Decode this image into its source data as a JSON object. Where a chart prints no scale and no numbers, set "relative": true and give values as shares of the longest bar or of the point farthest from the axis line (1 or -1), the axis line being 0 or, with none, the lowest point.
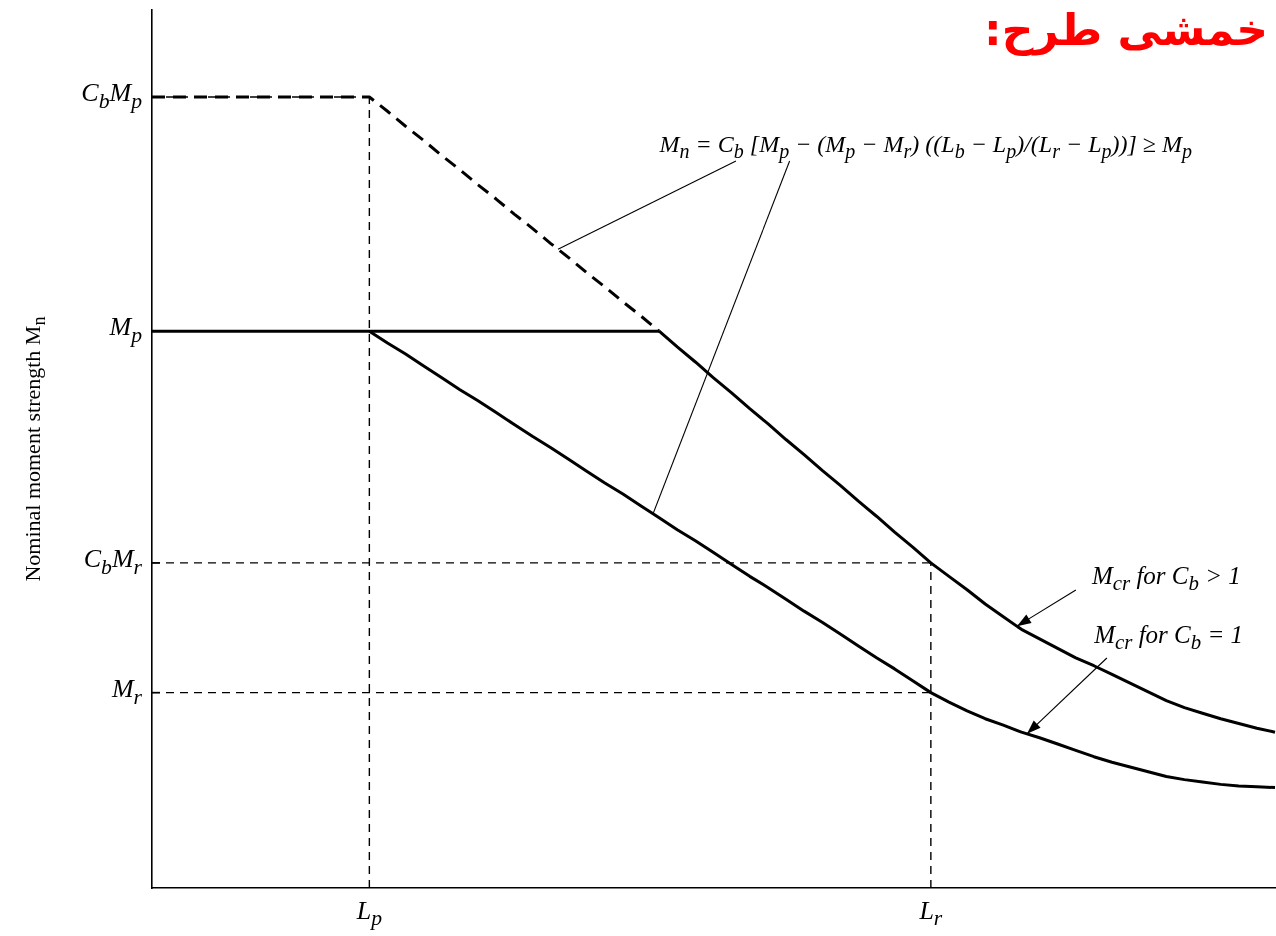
{
  "chart_data": {
    "type": "line",
    "title": "خمشی طرح:",
    "ylabel": "Nominal moment strength M$_{n}$",
    "relative": true,
    "categories": [
      null,
      null,
      null,
      null,
      null,
      null,
      null,
      null,
      null,
      null,
      null,
      null,
      "L$_{p}$",
      null,
      null,
      null,
      null,
      null,
      null,
      null,
      null,
      null,
      null,
      null,
      null,
      null,
      null,
      null,
      null,
      null,
      null,
      null,
      null,
      null,
      null,
      null,
      null,
      null,
      null,
      null,
      null,
      null,
      null,
      "L$_{r}$",
      null,
      null,
      null,
      null,
      null,
      null,
      null,
      null,
      null,
      null,
      null,
      null,
      null,
      null,
      null,
      null,
      null,
      null,
      null
    ],
    "series": [
      {
        "color": "#000000",
        "line_style": "dashed",
        "values": [
          1,
          1,
          1,
          1,
          1,
          1,
          1,
          1,
          1,
          1,
          1,
          1,
          1,
          0.982,
          0.963,
          0.945,
          0.926,
          0.908,
          0.889,
          0.871,
          0.852,
          0.834,
          0.815,
          0.797,
          0.778,
          0.76,
          0.741,
          0.723,
          0.704,
          null,
          null,
          null,
          null,
          null,
          null,
          null,
          null,
          null,
          null,
          null,
          null,
          null,
          null,
          null,
          null,
          null,
          null,
          null,
          null,
          null,
          null,
          null,
          null,
          null,
          null,
          null,
          null,
          null,
          null,
          null,
          null,
          null,
          null
        ]
      },
      {
        "color": "#000000",
        "values": [
          null,
          null,
          null,
          null,
          null,
          null,
          null,
          null,
          null,
          null,
          null,
          null,
          null,
          null,
          null,
          null,
          null,
          null,
          null,
          null,
          null,
          null,
          null,
          null,
          null,
          null,
          null,
          null,
          0.704,
          0.684,
          0.665,
          0.645,
          0.626,
          0.606,
          0.587,
          0.567,
          0.548,
          0.528,
          0.509,
          0.489,
          0.47,
          0.45,
          0.431,
          0.411,
          0.394,
          0.377,
          0.359,
          0.343,
          0.327,
          0.315,
          0.303,
          0.291,
          0.281,
          0.27,
          0.259,
          0.248,
          0.237,
          0.228,
          0.221,
          0.214,
          0.208,
          0.202,
          0.197
        ]
      },
      {
        "color": "#000000",
        "values": [
          null,
          null,
          null,
          null,
          null,
          null,
          null,
          null,
          null,
          null,
          null,
          null,
          0.704,
          0.689,
          0.675,
          0.66,
          0.645,
          0.63,
          0.616,
          0.601,
          0.586,
          0.571,
          0.557,
          0.542,
          0.527,
          0.512,
          0.498,
          0.483,
          0.468,
          0.453,
          0.439,
          0.424,
          0.409,
          0.394,
          0.38,
          0.365,
          0.35,
          0.336,
          0.321,
          0.306,
          0.291,
          0.277,
          0.262,
          0.247,
          0.235,
          0.224,
          0.214,
          0.206,
          0.197,
          0.19,
          0.182,
          0.174,
          0.166,
          0.159,
          0.153,
          0.147,
          0.141,
          0.137,
          0.134,
          0.131,
          0.129,
          0.128,
          0.127
        ]
      }
    ],
    "ref_lines": [
      {
        "axis": "y",
        "value": 1,
        "label": "C$_{b}$M$_{p}$",
        "line_style": "dashed"
      },
      {
        "axis": "y",
        "value": 0.704,
        "label": "M$_{p}$",
        "line_style": "solid"
      },
      {
        "axis": "y",
        "value": 0.411,
        "label": "C$_{b}$M$_{r}$",
        "line_style": "dashed"
      },
      {
        "axis": "y",
        "value": 0.247,
        "label": "M$_{r}$",
        "line_style": "dashed"
      },
      {
        "axis": "x",
        "value": "L$_{p}$",
        "line_style": "dashed"
      },
      {
        "axis": "x",
        "value": "L$_{r}$",
        "line_style": "dashed"
      }
    ],
    "annotations": [
      "M$_{n}$ = C$_{b}$ [M$_{p}$ − (M$_{p}$ − M$_{r}$) ((L$_{b}$ − L$_{p}$)/(L$_{r}$ − L$_{p}$))] ≥ M$_{p}$",
      "M$_{cr}$ for C$_{b}$ > 1",
      "M$_{cr}$ for C$_{b}$ = 1"
    ]
  }
}
